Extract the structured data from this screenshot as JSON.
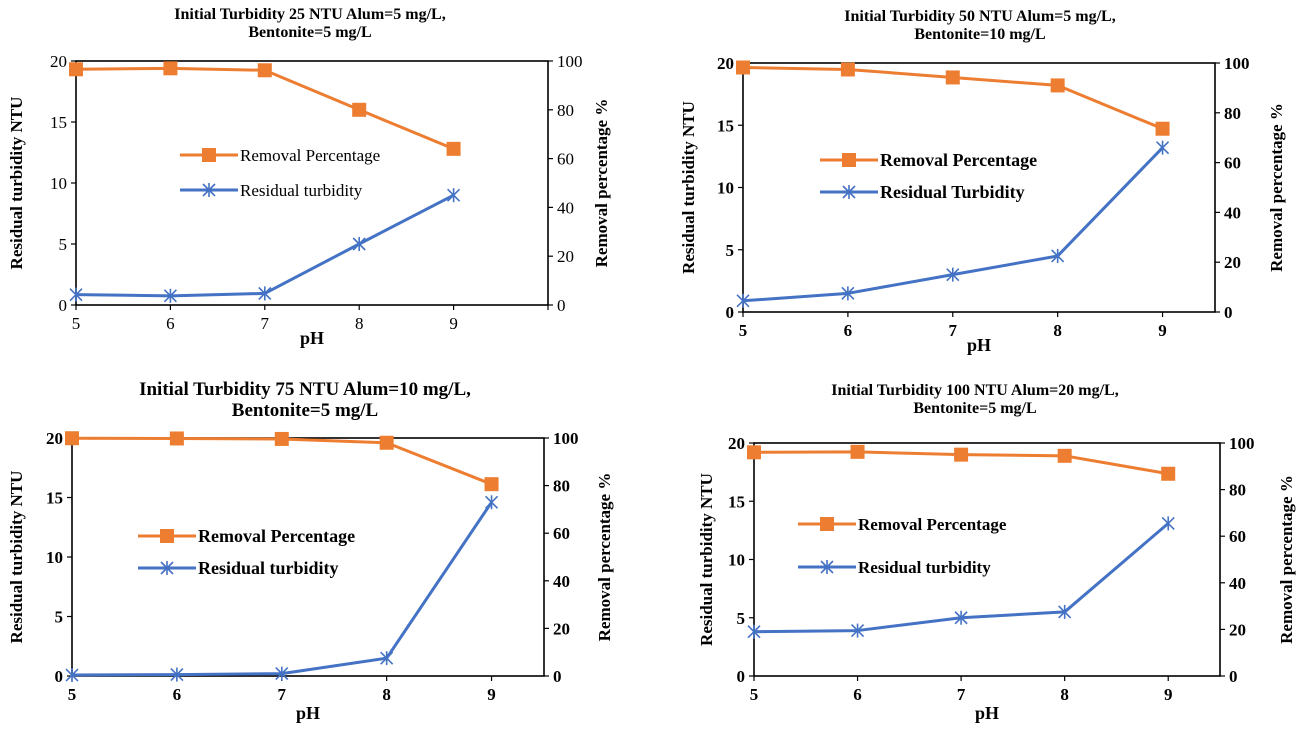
{
  "chart_data": [
    {
      "type": "line",
      "title_line1": "Initial Turbidity 25 NTU Alum=5 mg/L,",
      "title_line2": "Bentonite=5 mg/L",
      "xlabel": "pH",
      "ylabel_left": "Residual turbidity NTU",
      "ylabel_right": "Removal percentage %",
      "x": [
        5,
        6,
        7,
        8,
        9
      ],
      "xlim": [
        5,
        10
      ],
      "ylim_left": [
        0,
        20
      ],
      "ylim_right": [
        0,
        100
      ],
      "yticks_left": [
        "0",
        "5",
        "10",
        "15",
        "20"
      ],
      "yticks_right": [
        "0",
        "20",
        "40",
        "60",
        "80",
        "100"
      ],
      "legend_placement": "center",
      "series": [
        {
          "name": "Removal Percentage",
          "axis": "right",
          "marker": "square",
          "color": "#ED7D31",
          "values": [
            96.6,
            97.0,
            96.2,
            80.0,
            64.0
          ]
        },
        {
          "name": "Residual turbidity",
          "axis": "left",
          "marker": "asterisk",
          "color": "#4472C4",
          "values": [
            0.85,
            0.75,
            0.95,
            5.0,
            9.0
          ]
        }
      ]
    },
    {
      "type": "line",
      "title_line1": "Initial Turbidity 50 NTU Alum=5 mg/L,",
      "title_line2": "Bentonite=10 mg/L",
      "xlabel": "pH",
      "ylabel_left": "Residual turbidity NTU",
      "ylabel_right": "Removal percentage %",
      "x": [
        5,
        6,
        7,
        8,
        9
      ],
      "xlim": [
        5,
        9.5
      ],
      "ylim_left": [
        0,
        20
      ],
      "ylim_right": [
        0,
        100
      ],
      "yticks_left": [
        "0",
        "5",
        "10",
        "15",
        "20"
      ],
      "yticks_right": [
        "0",
        "20",
        "40",
        "60",
        "80",
        "100"
      ],
      "legend_placement": "center",
      "series": [
        {
          "name": "Removal Percentage",
          "axis": "right",
          "marker": "square",
          "color": "#ED7D31",
          "values": [
            98.2,
            97.4,
            94.2,
            91.0,
            73.6
          ]
        },
        {
          "name": "Residual Turbidity",
          "axis": "left",
          "marker": "asterisk",
          "color": "#4472C4",
          "values": [
            0.9,
            1.5,
            3.0,
            4.5,
            13.2
          ]
        }
      ]
    },
    {
      "type": "line",
      "title_line1": "Initial Turbidity 75 NTU Alum=10 mg/L,",
      "title_line2": "Bentonite=5 mg/L",
      "xlabel": "pH",
      "ylabel_left": "Residual turbidity NTU",
      "ylabel_right": "Removal percentage %",
      "x": [
        5,
        6,
        7,
        8,
        9
      ],
      "xlim": [
        5,
        9.5
      ],
      "ylim_left": [
        0,
        20
      ],
      "ylim_right": [
        0,
        100
      ],
      "yticks_left": [
        "0",
        "5",
        "10",
        "15",
        "20"
      ],
      "yticks_right": [
        "0",
        "20",
        "40",
        "60",
        "80",
        "100"
      ],
      "legend_placement": "center",
      "series": [
        {
          "name": "Removal Percentage",
          "axis": "right",
          "marker": "square",
          "color": "#ED7D31",
          "values": [
            99.9,
            99.8,
            99.6,
            98.0,
            80.6
          ]
        },
        {
          "name": "Residual turbidity",
          "axis": "left",
          "marker": "asterisk",
          "color": "#4472C4",
          "values": [
            0.08,
            0.12,
            0.2,
            1.5,
            14.6
          ]
        }
      ]
    },
    {
      "type": "line",
      "title_line1": "Initial Turbidity 100 NTU Alum=20 mg/L,",
      "title_line2": "Bentonite=5 mg/L",
      "xlabel": "pH",
      "ylabel_left": "Residual turbidity NTU",
      "ylabel_right": "Removal percentage %",
      "x": [
        5,
        6,
        7,
        8,
        9
      ],
      "xlim": [
        5,
        9.5
      ],
      "ylim_left": [
        0,
        20
      ],
      "ylim_right": [
        0,
        100
      ],
      "yticks_left": [
        "0",
        "5",
        "10",
        "15",
        "20"
      ],
      "yticks_right": [
        "0",
        "20",
        "40",
        "60",
        "80",
        "100"
      ],
      "legend_placement": "center",
      "series": [
        {
          "name": "Removal Percentage",
          "axis": "right",
          "marker": "square",
          "color": "#ED7D31",
          "values": [
            96.0,
            96.2,
            95.0,
            94.5,
            86.8
          ]
        },
        {
          "name": "Residual turbidity",
          "axis": "left",
          "marker": "asterisk",
          "color": "#4472C4",
          "values": [
            3.8,
            3.9,
            5.0,
            5.5,
            13.1
          ]
        }
      ]
    }
  ]
}
